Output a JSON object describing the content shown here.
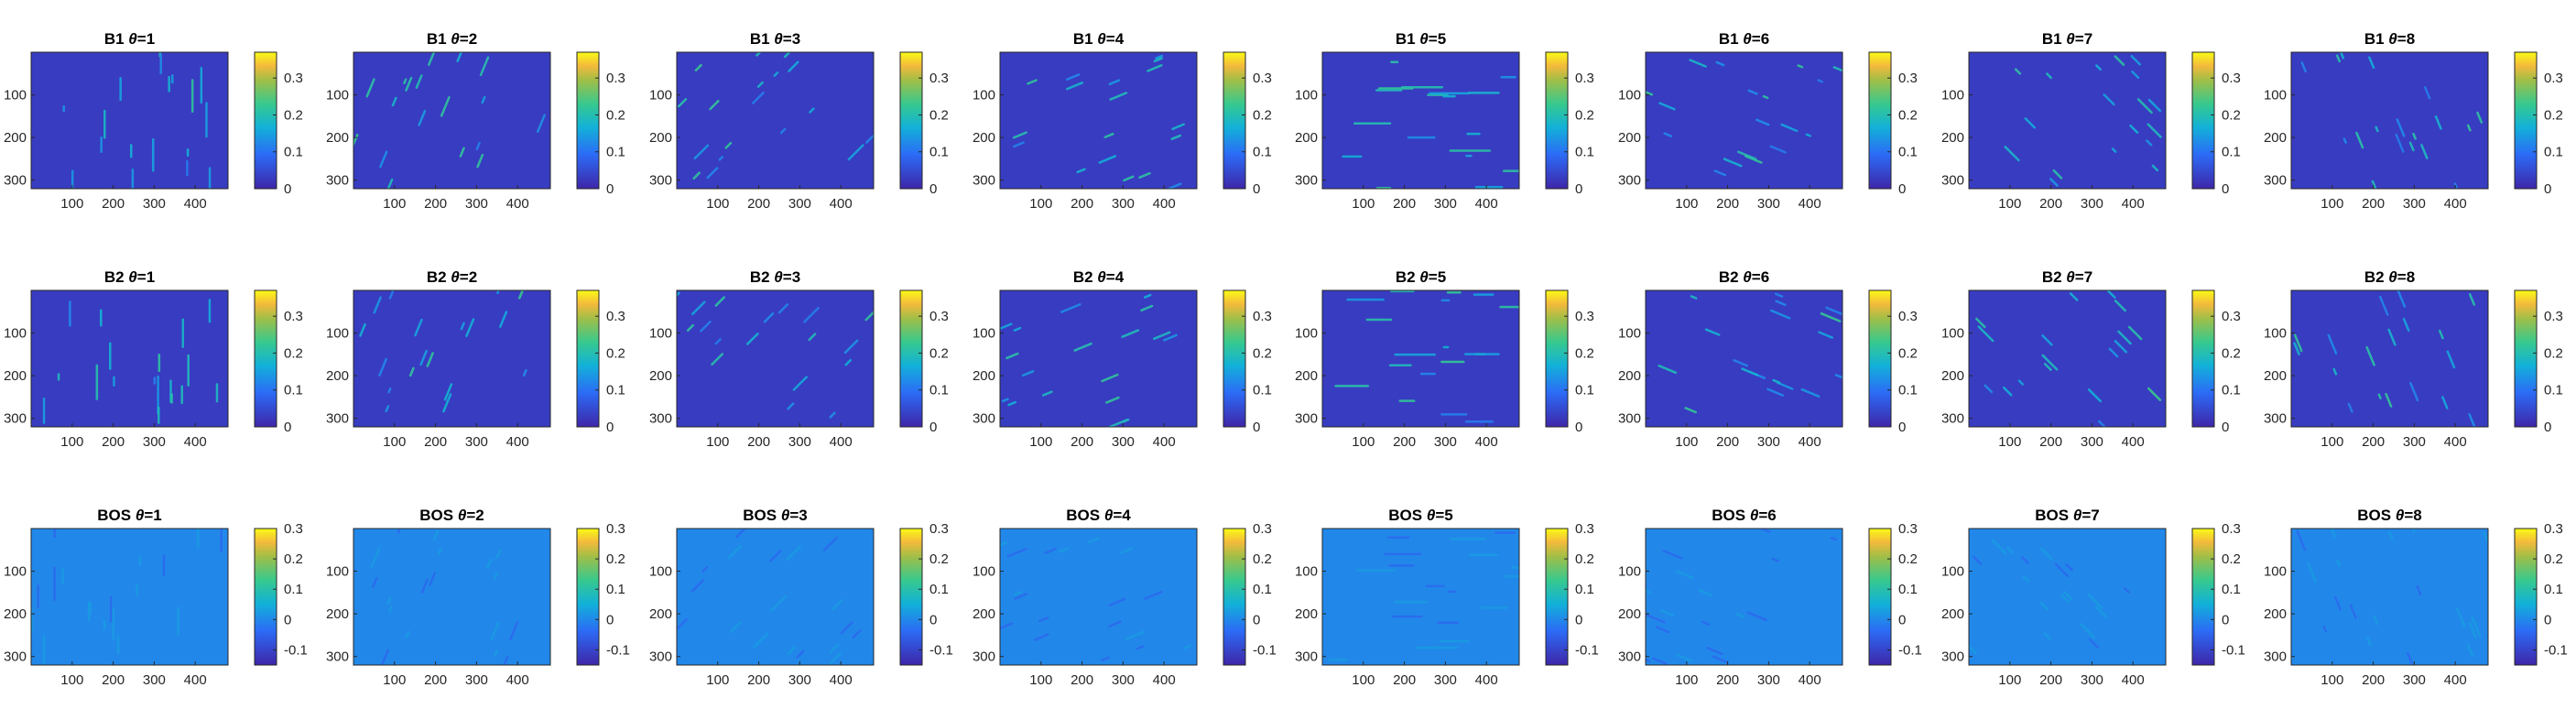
{
  "figure": {
    "rows": [
      {
        "prefix": "B1",
        "theta_values": [
          1,
          2,
          3,
          4,
          5,
          6,
          7,
          8
        ],
        "colorbar_ticks": [
          "0",
          "0.1",
          "0.2",
          "0.3"
        ]
      },
      {
        "prefix": "B2",
        "theta_values": [
          1,
          2,
          3,
          4,
          5,
          6,
          7,
          8
        ],
        "colorbar_ticks": [
          "0",
          "0.1",
          "0.2",
          "0.3"
        ]
      },
      {
        "prefix": "BOS",
        "theta_values": [
          1,
          2,
          3,
          4,
          5,
          6,
          7,
          8
        ],
        "colorbar_ticks": [
          "-0.1",
          "0",
          "0.1",
          "0.2",
          "0.3"
        ]
      }
    ],
    "x_ticks": [
      "100",
      "200",
      "300",
      "400"
    ],
    "y_ticks": [
      "100",
      "200",
      "300"
    ]
  },
  "chart_data": {
    "type": "heatmap",
    "layout": "3 rows x 8 panels",
    "colormap": "parula",
    "panel_titles": [
      [
        "B1 θ=1",
        "B1 θ=2",
        "B1 θ=3",
        "B1 θ=4",
        "B1 θ=5",
        "B1 θ=6",
        "B1 θ=7",
        "B1 θ=8"
      ],
      [
        "B2 θ=1",
        "B2 θ=2",
        "B2 θ=3",
        "B2 θ=4",
        "B2 θ=5",
        "B2 θ=6",
        "B2 θ=7",
        "B2 θ=8"
      ],
      [
        "BOS θ=1",
        "BOS θ=2",
        "BOS θ=3",
        "BOS θ=4",
        "BOS θ=5",
        "BOS θ=6",
        "BOS θ=7",
        "BOS θ=8"
      ]
    ],
    "xlim": [
      0,
      480
    ],
    "ylim": [
      320,
      0
    ],
    "x_tick_values": [
      100,
      200,
      300,
      400
    ],
    "y_tick_values": [
      100,
      200,
      300
    ],
    "color_limits": [
      {
        "row": "B1",
        "clim": [
          0,
          0.37
        ]
      },
      {
        "row": "B2",
        "clim": [
          0,
          0.37
        ]
      },
      {
        "row": "BOS",
        "clim": [
          -0.15,
          0.3
        ]
      }
    ],
    "background_value": [
      {
        "row": "B1",
        "value": 0.03
      },
      {
        "row": "B2",
        "value": 0.03
      },
      {
        "row": "BOS",
        "value": 0.0
      }
    ]
  }
}
